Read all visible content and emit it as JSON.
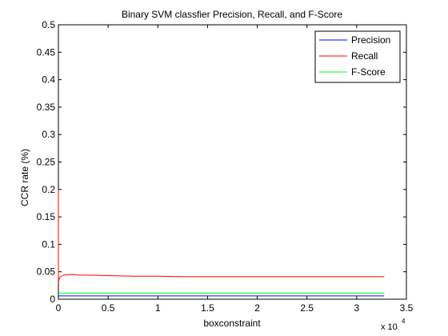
{
  "chart_data": {
    "type": "line",
    "title": "Binary SVM classfier Precision, Recall, and F-Score",
    "xlabel": "boxconstraint",
    "ylabel": "CCR rate (%)",
    "x_multiplier": "x 10",
    "x_multiplier_exponent": "4",
    "xlim": [
      0,
      35000
    ],
    "ylim": [
      0,
      0.5
    ],
    "x_ticks": [
      0,
      5000,
      10000,
      15000,
      20000,
      25000,
      30000,
      35000
    ],
    "x_tick_labels": [
      "0",
      "0.5",
      "1",
      "1.5",
      "2",
      "2.5",
      "3",
      "3.5"
    ],
    "y_ticks": [
      0,
      0.05,
      0.1,
      0.15,
      0.2,
      0.25,
      0.3,
      0.35,
      0.4,
      0.45,
      0.5
    ],
    "y_tick_labels": [
      "0",
      "0.05",
      "0.1",
      "0.15",
      "0.2",
      "0.25",
      "0.3",
      "0.35",
      "0.4",
      "0.45",
      "0.5"
    ],
    "grid": false,
    "legend_position": "top-right",
    "series": [
      {
        "name": "Precision",
        "color": "#0000ff",
        "x": [
          0,
          32768
        ],
        "y": [
          0.006,
          0.006
        ]
      },
      {
        "name": "Recall",
        "color": "#ff0000",
        "x": [
          0,
          0,
          60,
          150,
          300,
          600,
          1000,
          1500,
          2000,
          3000,
          5000,
          7500,
          10000,
          12500,
          16000,
          20000,
          25000,
          30000,
          32768
        ],
        "y": [
          0.2,
          0.03,
          0.036,
          0.04,
          0.042,
          0.044,
          0.045,
          0.045,
          0.044,
          0.044,
          0.043,
          0.042,
          0.042,
          0.041,
          0.041,
          0.041,
          0.041,
          0.041,
          0.041
        ]
      },
      {
        "name": "F-Score",
        "color": "#00ff00",
        "x": [
          0,
          32768
        ],
        "y": [
          0.011,
          0.011
        ]
      }
    ]
  }
}
